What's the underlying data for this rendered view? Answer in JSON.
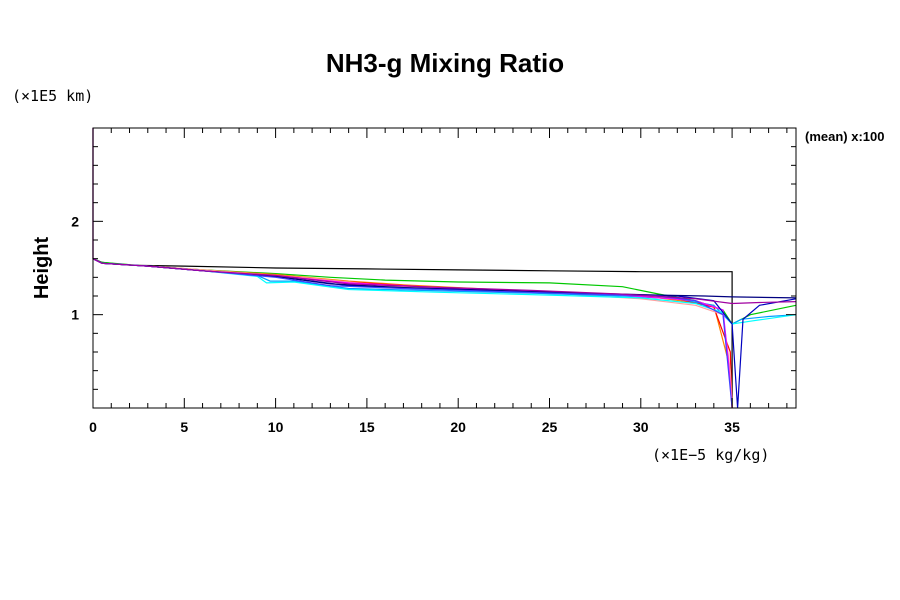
{
  "chart_data": {
    "type": "line",
    "title": "NH3-g Mixing Ratio",
    "ylabel": "Height",
    "y_unit": "(×1E5 km)",
    "x_unit": "(×1E−5 kg/kg)",
    "annotation": "(mean) x:100",
    "xlim": [
      0,
      38.5
    ],
    "ylim": [
      0,
      3
    ],
    "x_ticks": [
      "0",
      "5",
      "10",
      "15",
      "20",
      "25",
      "30",
      "35"
    ],
    "y_ticks": [
      "1",
      "2"
    ],
    "grid": false,
    "legend": "none",
    "series": [
      {
        "color": "#000000",
        "points": [
          [
            0,
            3
          ],
          [
            0,
            1.6
          ],
          [
            0.5,
            1.56
          ],
          [
            2,
            1.53
          ],
          [
            5,
            1.52
          ],
          [
            10,
            1.5
          ],
          [
            15,
            1.49
          ],
          [
            20,
            1.48
          ],
          [
            25,
            1.47
          ],
          [
            30,
            1.46
          ],
          [
            34,
            1.46
          ],
          [
            35,
            1.46
          ],
          [
            35,
            0
          ]
        ]
      },
      {
        "color": "#00c800",
        "points": [
          [
            0,
            1.6
          ],
          [
            0.5,
            1.56
          ],
          [
            3,
            1.52
          ],
          [
            6,
            1.48
          ],
          [
            10,
            1.44
          ],
          [
            13,
            1.4
          ],
          [
            16,
            1.37
          ],
          [
            20,
            1.35
          ],
          [
            25,
            1.34
          ],
          [
            29,
            1.3
          ],
          [
            31,
            1.22
          ],
          [
            33,
            1.15
          ],
          [
            34.5,
            1.05
          ],
          [
            35,
            0.9
          ],
          [
            36,
            1.0
          ],
          [
            38.5,
            1.1
          ]
        ]
      },
      {
        "color": "#ff8000",
        "points": [
          [
            0,
            1.6
          ],
          [
            0.5,
            1.55
          ],
          [
            3,
            1.52
          ],
          [
            6,
            1.48
          ],
          [
            10,
            1.43
          ],
          [
            14,
            1.36
          ],
          [
            17,
            1.32
          ],
          [
            22,
            1.27
          ],
          [
            27,
            1.23
          ],
          [
            31,
            1.18
          ],
          [
            34,
            1.1
          ],
          [
            34.8,
            0.5
          ],
          [
            35,
            0
          ]
        ]
      },
      {
        "color": "#ff0000",
        "points": [
          [
            0,
            1.6
          ],
          [
            0.5,
            1.55
          ],
          [
            3,
            1.52
          ],
          [
            6,
            1.47
          ],
          [
            10,
            1.42
          ],
          [
            14,
            1.35
          ],
          [
            18,
            1.3
          ],
          [
            23,
            1.26
          ],
          [
            28,
            1.22
          ],
          [
            32,
            1.17
          ],
          [
            34,
            1.08
          ],
          [
            34.9,
            0.6
          ],
          [
            35,
            0
          ]
        ]
      },
      {
        "color": "#ffa0a0",
        "points": [
          [
            0,
            1.6
          ],
          [
            0.5,
            1.55
          ],
          [
            4,
            1.51
          ],
          [
            8,
            1.45
          ],
          [
            12,
            1.39
          ],
          [
            16,
            1.31
          ],
          [
            21,
            1.26
          ],
          [
            26,
            1.22
          ],
          [
            30,
            1.17
          ],
          [
            33,
            1.1
          ],
          [
            34.5,
            1.0
          ],
          [
            34.9,
            0.4
          ],
          [
            35,
            0
          ]
        ]
      },
      {
        "color": "#00a0ff",
        "points": [
          [
            0,
            1.6
          ],
          [
            0.5,
            1.55
          ],
          [
            3,
            1.52
          ],
          [
            6,
            1.47
          ],
          [
            9,
            1.42
          ],
          [
            9.7,
            1.36
          ],
          [
            11,
            1.36
          ],
          [
            14,
            1.28
          ],
          [
            18,
            1.26
          ],
          [
            24,
            1.23
          ],
          [
            29,
            1.2
          ],
          [
            32,
            1.17
          ],
          [
            34,
            1.1
          ],
          [
            35,
            0.9
          ],
          [
            35.5,
            0.95
          ],
          [
            37,
            0.98
          ],
          [
            38.5,
            1.0
          ]
        ]
      },
      {
        "color": "#00ffff",
        "points": [
          [
            0,
            1.6
          ],
          [
            0.5,
            1.55
          ],
          [
            3,
            1.52
          ],
          [
            6,
            1.47
          ],
          [
            9,
            1.41
          ],
          [
            9.5,
            1.34
          ],
          [
            11,
            1.35
          ],
          [
            14,
            1.27
          ],
          [
            19,
            1.24
          ],
          [
            25,
            1.21
          ],
          [
            30,
            1.18
          ],
          [
            33,
            1.12
          ],
          [
            34.5,
            1.02
          ],
          [
            35,
            0.9
          ],
          [
            36,
            0.93
          ],
          [
            38.5,
            1.0
          ]
        ]
      },
      {
        "color": "#ff00ff",
        "points": [
          [
            0,
            3
          ],
          [
            0,
            1.6
          ],
          [
            0.5,
            1.55
          ],
          [
            3,
            1.52
          ],
          [
            6,
            1.47
          ],
          [
            10,
            1.42
          ],
          [
            14,
            1.34
          ],
          [
            19,
            1.29
          ],
          [
            24,
            1.25
          ],
          [
            29,
            1.21
          ],
          [
            33,
            1.15
          ],
          [
            34.5,
            1.05
          ],
          [
            34.8,
            0.5
          ],
          [
            35,
            0
          ]
        ]
      },
      {
        "color": "#0000c0",
        "points": [
          [
            0,
            1.6
          ],
          [
            0.5,
            1.55
          ],
          [
            3,
            1.52
          ],
          [
            6,
            1.47
          ],
          [
            10,
            1.41
          ],
          [
            14,
            1.31
          ],
          [
            18,
            1.28
          ],
          [
            23,
            1.25
          ],
          [
            28,
            1.22
          ],
          [
            32,
            1.2
          ],
          [
            34,
            1.15
          ],
          [
            35,
            0.9
          ],
          [
            35.3,
            0
          ],
          [
            35.6,
            0.95
          ],
          [
            36.5,
            1.1
          ],
          [
            38.5,
            1.17
          ]
        ]
      },
      {
        "color": "#000080",
        "points": [
          [
            0,
            1.6
          ],
          [
            0.5,
            1.55
          ],
          [
            3,
            1.52
          ],
          [
            6,
            1.47
          ],
          [
            10,
            1.41
          ],
          [
            13,
            1.33
          ],
          [
            17,
            1.29
          ],
          [
            22,
            1.26
          ],
          [
            27,
            1.23
          ],
          [
            31,
            1.21
          ],
          [
            33.5,
            1.2
          ],
          [
            35,
            1.19
          ],
          [
            38.5,
            1.18
          ]
        ]
      },
      {
        "color": "#4040ff",
        "points": [
          [
            0,
            1.6
          ],
          [
            0.5,
            1.55
          ],
          [
            3,
            1.52
          ],
          [
            6,
            1.47
          ],
          [
            10,
            1.4
          ],
          [
            13,
            1.31
          ],
          [
            17,
            1.28
          ],
          [
            22,
            1.25
          ],
          [
            27,
            1.22
          ],
          [
            31,
            1.2
          ],
          [
            33,
            1.15
          ],
          [
            34.5,
            1.0
          ],
          [
            35,
            0
          ]
        ]
      },
      {
        "color": "#a000a0",
        "points": [
          [
            0,
            1.6
          ],
          [
            0.5,
            1.55
          ],
          [
            3,
            1.52
          ],
          [
            6,
            1.47
          ],
          [
            10,
            1.42
          ],
          [
            14,
            1.33
          ],
          [
            18,
            1.3
          ],
          [
            24,
            1.26
          ],
          [
            29,
            1.22
          ],
          [
            33,
            1.17
          ],
          [
            35,
            1.12
          ],
          [
            36.5,
            1.13
          ],
          [
            38.5,
            1.14
          ]
        ]
      }
    ]
  }
}
